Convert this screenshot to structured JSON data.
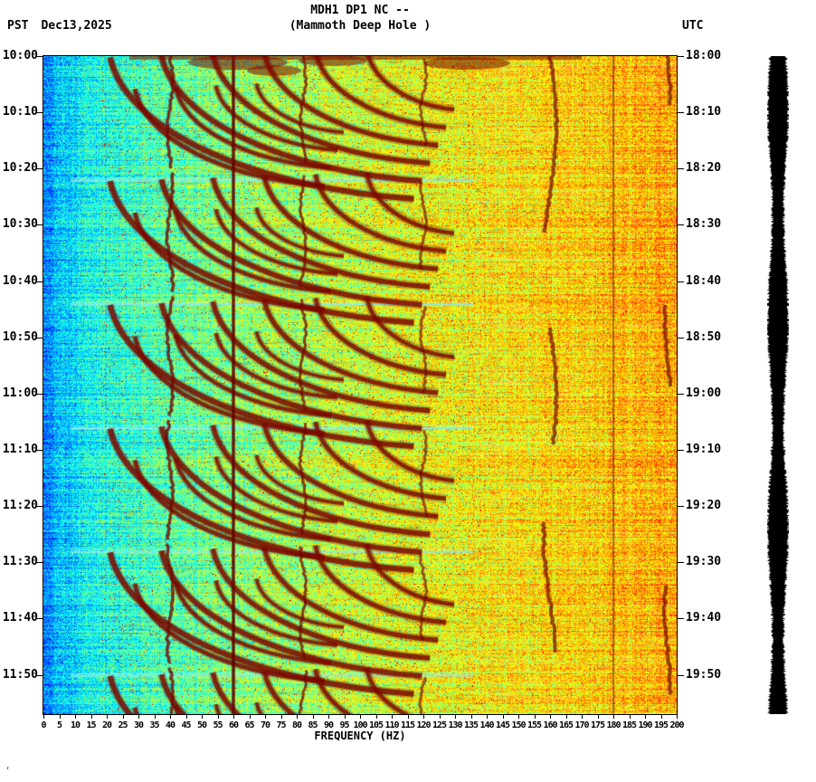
{
  "header": {
    "station": "MDH1 DP1 NC --",
    "station_name": "(Mammoth Deep Hole )",
    "tz_left": "PST",
    "date": "Dec13,2025",
    "tz_right": "UTC"
  },
  "footer": {
    "artifact": ","
  },
  "colors": {
    "background": "#ffffff",
    "text": "#000000",
    "plot_border": "#000000",
    "amplitude_bar": "#000000",
    "line_60hz": "#6e0000",
    "tremor_arc": "#8c0800",
    "separator_line": "#8ceeee"
  },
  "chart_data": {
    "type": "heatmap",
    "title": "MDH1 DP1 NC -- (Mammoth Deep Hole )",
    "xlabel": "FREQUENCY (HZ)",
    "xlim": [
      0,
      200
    ],
    "x_tick_step_hz": 5,
    "x_ticks": [
      0,
      5,
      10,
      15,
      20,
      25,
      30,
      35,
      40,
      45,
      50,
      55,
      60,
      65,
      70,
      75,
      80,
      85,
      90,
      95,
      100,
      105,
      110,
      115,
      120,
      125,
      130,
      135,
      140,
      145,
      150,
      155,
      160,
      165,
      170,
      175,
      180,
      185,
      190,
      195,
      200
    ],
    "y_axis_left": {
      "timezone": "PST",
      "labels": [
        "10:00",
        "10:10",
        "10:20",
        "10:30",
        "10:40",
        "10:50",
        "11:00",
        "11:10",
        "11:20",
        "11:30",
        "11:40",
        "11:50"
      ]
    },
    "y_axis_right": {
      "timezone": "UTC",
      "labels": [
        "18:00",
        "18:10",
        "18:20",
        "18:30",
        "18:40",
        "18:50",
        "19:00",
        "19:10",
        "19:20",
        "19:30",
        "19:40",
        "19:50"
      ]
    },
    "y_tick_interval_min": 10,
    "time_span_min": 117,
    "colormap": "jet",
    "features": {
      "persistent_lines_hz": [
        60,
        180
      ],
      "tremor_band_hz": [
        20,
        135
      ],
      "event_start_times_pst": [
        "10:00",
        "10:22",
        "10:44",
        "11:06",
        "11:28",
        "11:50"
      ],
      "squiggle_lines_hz": [
        40,
        82,
        120,
        160,
        197
      ],
      "background_gradient": "blue below 20 Hz grading through green to yellow-orange above 60 Hz"
    }
  }
}
